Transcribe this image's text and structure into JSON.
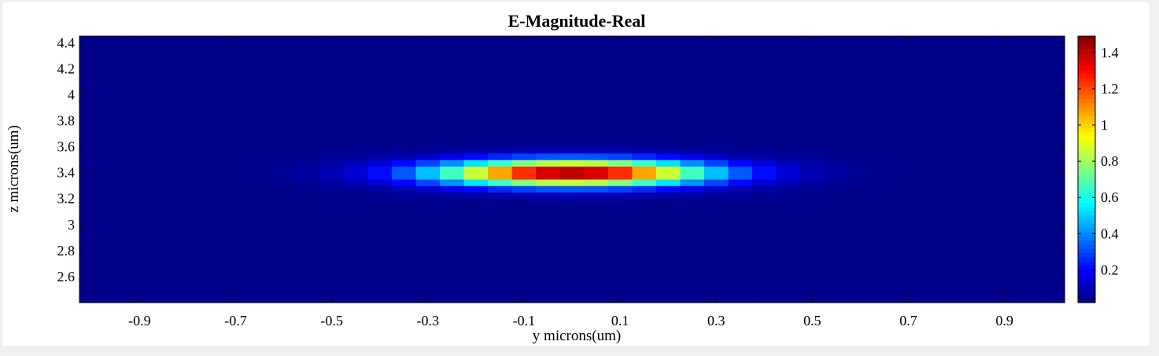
{
  "chart_data": {
    "type": "heatmap",
    "title": "E-Magnitude-Real",
    "xlabel": "y microns(um)",
    "ylabel": "z microns(um)",
    "xlim": [
      -1.025,
      1.025
    ],
    "ylim": [
      2.4,
      4.45
    ],
    "x_ticks": [
      "-0.9",
      "-0.7",
      "-0.5",
      "-0.3",
      "-0.1",
      "0.1",
      "0.3",
      "0.5",
      "0.7",
      "0.9"
    ],
    "y_ticks": [
      "4.4",
      "4.2",
      "4",
      "3.8",
      "3.6",
      "3.4",
      "3.2",
      "3",
      "2.8",
      "2.6"
    ],
    "colorbar": {
      "range": [
        0.02,
        1.49
      ],
      "colormap": "jet",
      "ticks": [
        "1.4",
        "1.2",
        "1",
        "0.8",
        "0.6",
        "0.4",
        "0.2"
      ]
    },
    "grid_dx": 0.05,
    "grid_dz": 0.05,
    "field": {
      "center": [
        0.0,
        3.4
      ],
      "peak": 1.49,
      "background": 0.035,
      "half_width_y_um": 0.2,
      "half_width_z_um": 0.07
    }
  }
}
